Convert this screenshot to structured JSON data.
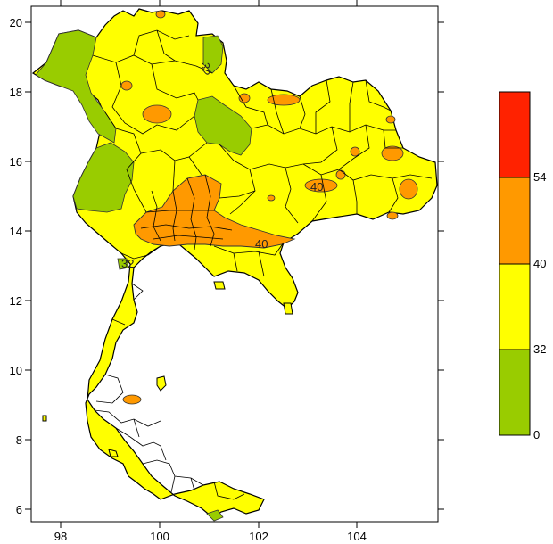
{
  "map": {
    "x_ticks": [
      "98",
      "100",
      "102",
      "104"
    ],
    "y_ticks": [
      "20",
      "18",
      "16",
      "14",
      "12",
      "10",
      "8",
      "6"
    ],
    "contour_labels": [
      "32",
      "40",
      "40",
      "32"
    ]
  },
  "legend": {
    "bins": [
      {
        "label": "0",
        "color": "#99cc00"
      },
      {
        "label": "32",
        "color": "#ffff00"
      },
      {
        "label": "40",
        "color": "#ff9900"
      },
      {
        "label": "54",
        "color": "#ff2200"
      }
    ]
  }
}
